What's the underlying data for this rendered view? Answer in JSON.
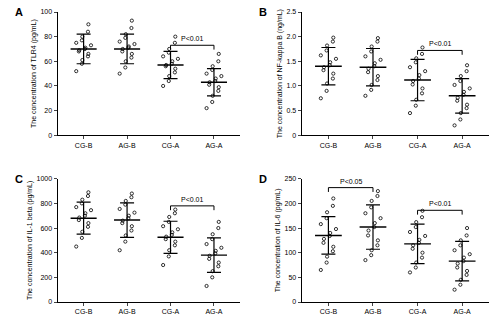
{
  "chart_data": [
    {
      "type": "scatter",
      "title": "A",
      "y_label": "The concentration of TLR4 (pg/mL)",
      "categories": [
        "CG-B",
        "AG-B",
        "CG-A",
        "AG-A"
      ],
      "color": "#000000",
      "marker": "circle",
      "grid": false,
      "values": [
        [
          52,
          58,
          61,
          64,
          66,
          68,
          69,
          70,
          71,
          73,
          75,
          77,
          80,
          84,
          90
        ],
        [
          50,
          55,
          60,
          63,
          66,
          68,
          70,
          71,
          72,
          74,
          76,
          79,
          82,
          87,
          93
        ],
        [
          40,
          44,
          48,
          51,
          54,
          56,
          57,
          58,
          60,
          62,
          64,
          67,
          70,
          75,
          80
        ],
        [
          22,
          27,
          32,
          36,
          39,
          41,
          43,
          44,
          46,
          48,
          50,
          53,
          56,
          60,
          66
        ]
      ],
      "mean": [
        70,
        70,
        57,
        43
      ],
      "sd": [
        12,
        12,
        11,
        11
      ],
      "ylim": [
        0,
        100
      ],
      "yticks": [
        0,
        20,
        40,
        60,
        80,
        100
      ],
      "annotations": [
        {
          "text": "P<0.01",
          "from": "CG-A",
          "to": "AG-A",
          "y": 73
        }
      ]
    },
    {
      "type": "scatter",
      "title": "B",
      "y_label": "The concentration of NF-kappa B (ng/mL)",
      "categories": [
        "CG-B",
        "AG-B",
        "CG-A",
        "AG-A"
      ],
      "color": "#000000",
      "marker": "circle",
      "grid": false,
      "values": [
        [
          0.75,
          0.9,
          1.05,
          1.15,
          1.25,
          1.32,
          1.38,
          1.42,
          1.48,
          1.55,
          1.62,
          1.72,
          1.82,
          1.9,
          1.98
        ],
        [
          0.8,
          0.92,
          1.02,
          1.12,
          1.2,
          1.28,
          1.35,
          1.4,
          1.46,
          1.53,
          1.6,
          1.7,
          1.8,
          1.9,
          1.97
        ],
        [
          0.45,
          0.6,
          0.72,
          0.85,
          0.95,
          1.03,
          1.1,
          1.15,
          1.22,
          1.3,
          1.38,
          1.48,
          1.56,
          1.65,
          1.78
        ],
        [
          0.2,
          0.32,
          0.45,
          0.55,
          0.62,
          0.7,
          0.76,
          0.82,
          0.88,
          0.95,
          1.02,
          1.1,
          1.2,
          1.3,
          1.42
        ]
      ],
      "mean": [
        1.4,
        1.38,
        1.12,
        0.8
      ],
      "sd": [
        0.38,
        0.38,
        0.42,
        0.35
      ],
      "ylim": [
        0,
        2.5
      ],
      "yticks": [
        0,
        0.5,
        {
          "value": 1,
          "label": "1.0"
        },
        1.5,
        {
          "value": 2,
          "label": "2.0"
        },
        2.5
      ],
      "annotations": [
        {
          "text": "P<0.01",
          "from": "CG-A",
          "to": "AG-A",
          "y": 1.72
        }
      ]
    },
    {
      "type": "scatter",
      "title": "C",
      "y_label": "The concentration of IL-1 beta (pg/mL)",
      "categories": [
        "CG-B",
        "AG-B",
        "CG-A",
        "AG-A"
      ],
      "color": "#000000",
      "marker": "circle",
      "grid": false,
      "values": [
        [
          450,
          520,
          570,
          610,
          640,
          665,
          685,
          700,
          720,
          745,
          770,
          800,
          830,
          860,
          890
        ],
        [
          420,
          490,
          540,
          580,
          615,
          640,
          660,
          680,
          700,
          725,
          755,
          790,
          820,
          850,
          880
        ],
        [
          300,
          370,
          420,
          460,
          490,
          510,
          530,
          545,
          565,
          590,
          615,
          650,
          690,
          720,
          750
        ],
        [
          130,
          200,
          250,
          290,
          320,
          350,
          375,
          395,
          415,
          440,
          470,
          510,
          550,
          600,
          650
        ]
      ],
      "mean": [
        680,
        665,
        525,
        380
      ],
      "sd": [
        130,
        140,
        130,
        140
      ],
      "ylim": [
        0,
        1000
      ],
      "yticks": [
        0,
        200,
        400,
        600,
        800,
        1000
      ],
      "annotations": [
        {
          "text": "P<0.01",
          "from": "CG-A",
          "to": "AG-A",
          "y": 780
        }
      ]
    },
    {
      "type": "scatter",
      "title": "D",
      "y_label": "The concentration of IL-6 (pg/mL)",
      "categories": [
        "CG-B",
        "AG-B",
        "CG-A",
        "AG-A"
      ],
      "color": "#000000",
      "marker": "circle",
      "grid": false,
      "values": [
        [
          65,
          80,
          92,
          103,
          112,
          120,
          128,
          134,
          140,
          148,
          158,
          170,
          182,
          195,
          210
        ],
        [
          85,
          95,
          105,
          115,
          125,
          135,
          145,
          152,
          160,
          170,
          180,
          192,
          205,
          215,
          225
        ],
        [
          60,
          70,
          80,
          90,
          100,
          108,
          115,
          120,
          126,
          134,
          142,
          152,
          162,
          172,
          185
        ],
        [
          25,
          35,
          45,
          55,
          63,
          70,
          78,
          83,
          90,
          97,
          105,
          115,
          125,
          135,
          150
        ]
      ],
      "mean": [
        135,
        152,
        118,
        83
      ],
      "sd": [
        38,
        45,
        40,
        40
      ],
      "ylim": [
        0,
        250
      ],
      "yticks": [
        0,
        50,
        100,
        150,
        200,
        250
      ],
      "annotations": [
        {
          "text": "P<0.05",
          "from": "CG-B",
          "to": "AG-B",
          "y": 232
        },
        {
          "text": "P<0.01",
          "from": "CG-A",
          "to": "AG-A",
          "y": 186
        }
      ]
    }
  ]
}
